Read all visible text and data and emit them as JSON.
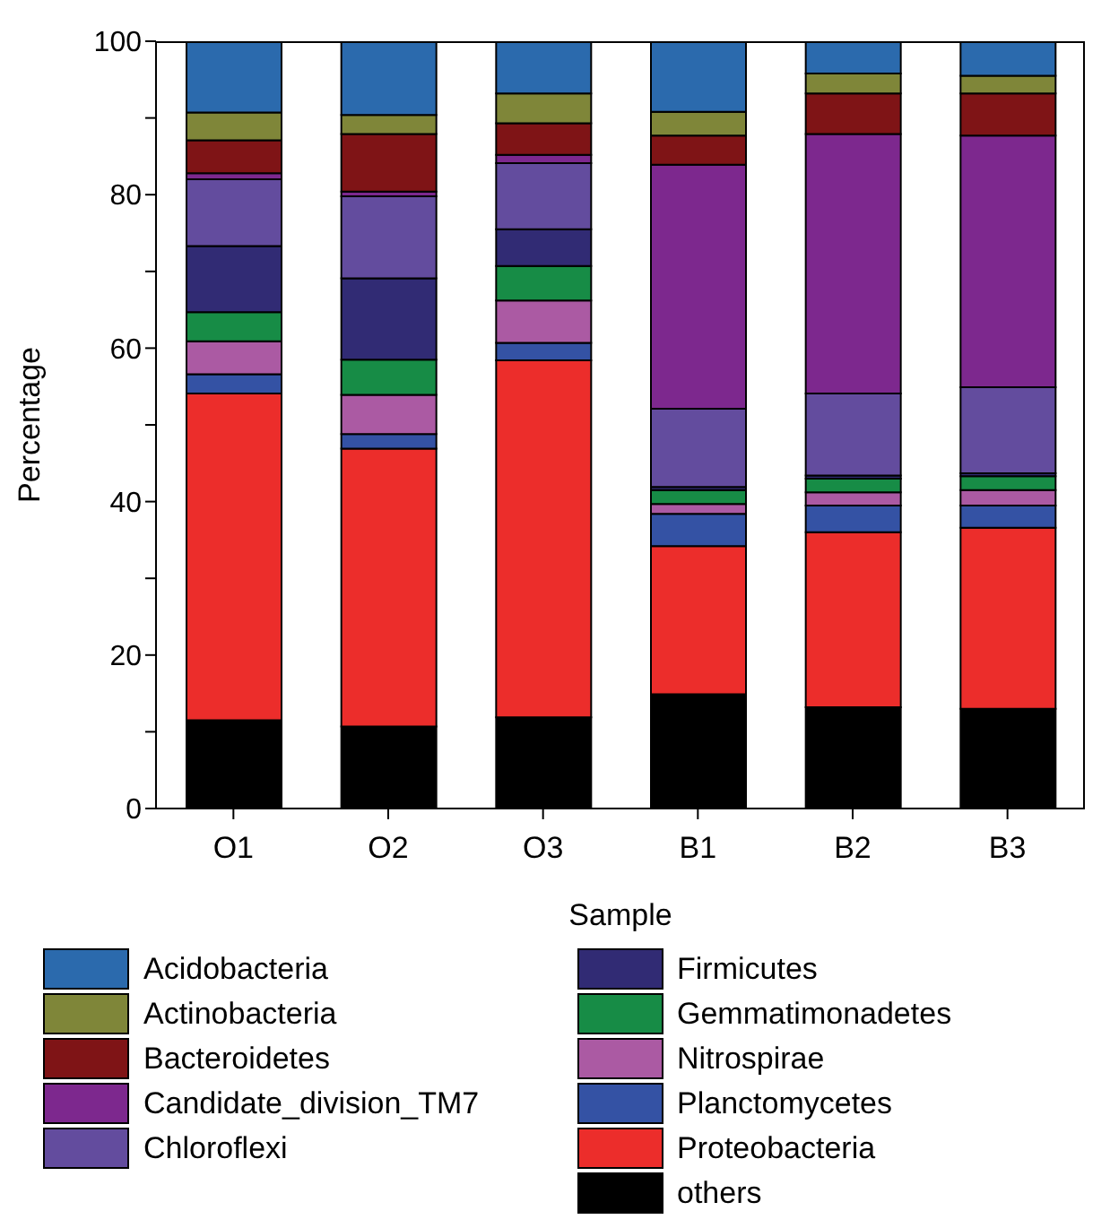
{
  "chart_data": {
    "type": "bar",
    "stacked": true,
    "xlabel": "Sample",
    "ylabel": "Percentage",
    "categories": [
      "O1",
      "O2",
      "O3",
      "B1",
      "B2",
      "B3"
    ],
    "ylim": [
      0,
      100
    ],
    "yticks": [
      0,
      {
        "value": 10,
        "label": null
      },
      20,
      {
        "value": 30,
        "label": null
      },
      40,
      {
        "value": 50,
        "label": null
      },
      60,
      {
        "value": 70,
        "label": null
      },
      80,
      {
        "value": 90,
        "label": null
      },
      100
    ],
    "legend": "bottom",
    "series": [
      {
        "name": "others",
        "color": "#000000",
        "values": [
          11.5,
          10.7,
          11.9,
          14.9,
          13.2,
          13.0
        ]
      },
      {
        "name": "Proteobacteria",
        "color": "#ec2d2b",
        "values": [
          42.6,
          36.2,
          46.5,
          19.3,
          22.8,
          23.6
        ]
      },
      {
        "name": "Planctomycetes",
        "color": "#3452a4",
        "values": [
          2.5,
          1.9,
          2.3,
          4.2,
          3.5,
          2.9
        ]
      },
      {
        "name": "Nitrospirae",
        "color": "#ab5aa3",
        "values": [
          4.3,
          5.1,
          5.5,
          1.3,
          1.7,
          2.0
        ]
      },
      {
        "name": "Gemmatimonadetes",
        "color": "#178c46",
        "values": [
          3.8,
          4.6,
          4.5,
          1.8,
          1.8,
          1.8
        ]
      },
      {
        "name": "Firmicutes",
        "color": "#312b74",
        "values": [
          8.6,
          10.6,
          4.8,
          0.4,
          0.4,
          0.4
        ]
      },
      {
        "name": "Chloroflexi",
        "color": "#634c9e",
        "values": [
          8.7,
          10.7,
          8.6,
          10.2,
          10.7,
          11.2
        ]
      },
      {
        "name": "Candidate_division_TM7",
        "color": "#7d288e",
        "values": [
          0.8,
          0.6,
          1.1,
          31.8,
          33.8,
          32.8
        ]
      },
      {
        "name": "Bacteroidetes",
        "color": "#7f1416",
        "values": [
          4.3,
          7.5,
          4.1,
          3.8,
          5.3,
          5.5
        ]
      },
      {
        "name": "Actinobacteria",
        "color": "#7f8639",
        "values": [
          3.6,
          2.5,
          3.9,
          3.1,
          2.6,
          2.3
        ]
      },
      {
        "name": "Acidobacteria",
        "color": "#2b6aad",
        "values": [
          9.3,
          9.6,
          6.8,
          9.2,
          4.2,
          4.5
        ]
      }
    ]
  }
}
